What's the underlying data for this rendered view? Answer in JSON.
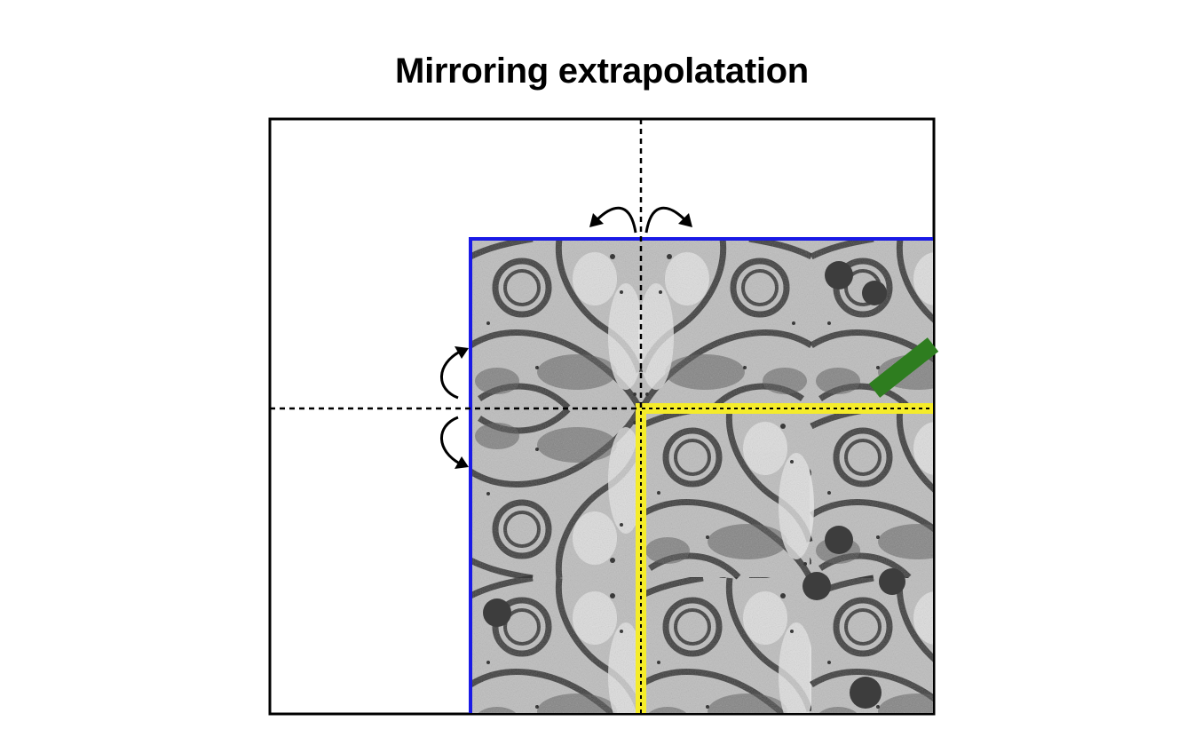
{
  "title": "Mirroring extrapolatation",
  "colors": {
    "image_border": "#1a1ae6",
    "original_region": "#f5ec2a",
    "marker": "#2e7d1f",
    "frame": "#000000"
  },
  "elements": {
    "outer_frame": "canvas-frame",
    "image_region": "mirrored-em-image",
    "original_tile": "original-image-region",
    "arrows": [
      "flip-arrow-top-left",
      "flip-arrow-top-right",
      "flip-arrow-left-up",
      "flip-arrow-left-down"
    ],
    "axes": [
      "vertical-mirror-axis",
      "horizontal-mirror-axis"
    ]
  }
}
